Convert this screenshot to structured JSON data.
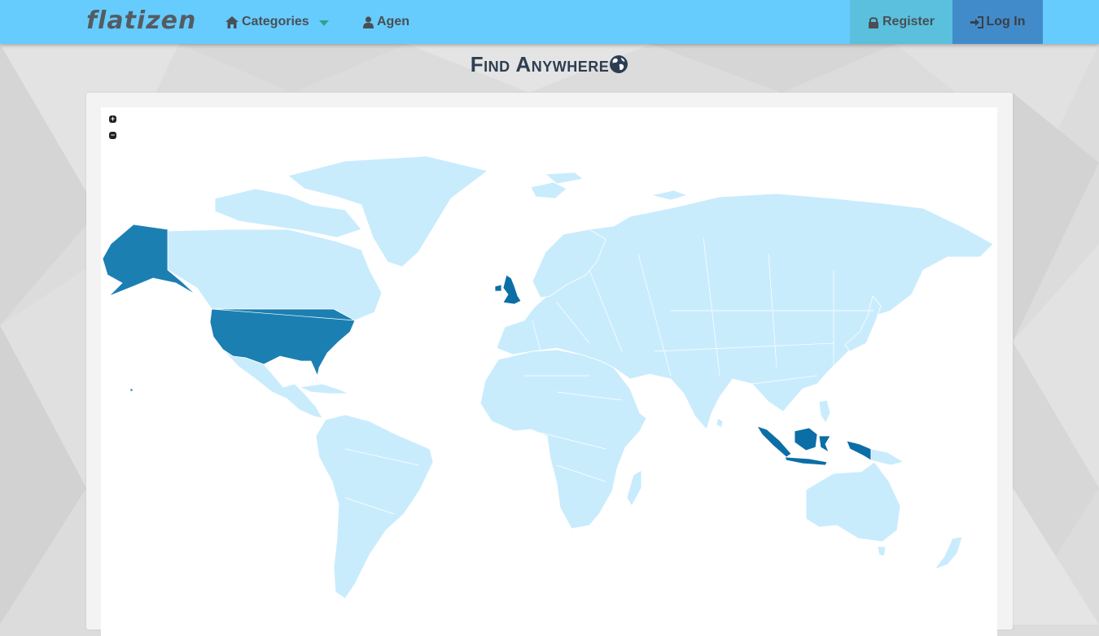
{
  "navbar": {
    "brand": "flatizen",
    "categories_label": "Categories",
    "agen_label": "Agen",
    "register_label": "Register",
    "login_label": "Log In"
  },
  "main": {
    "title": "Find Anywhere"
  },
  "map": {
    "zoom_in": "+",
    "zoom_out": "−",
    "base_color": "#c9ecfd",
    "highlight_color": "#1c7fb2",
    "highlighted_regions": [
      "Alaska",
      "United States",
      "United Kingdom",
      "Indonesia",
      "Hawaii"
    ]
  },
  "colors": {
    "navbar": "#66ccfd",
    "register": "#5ac0de",
    "login": "#428bca",
    "title": "#2e3e52"
  }
}
